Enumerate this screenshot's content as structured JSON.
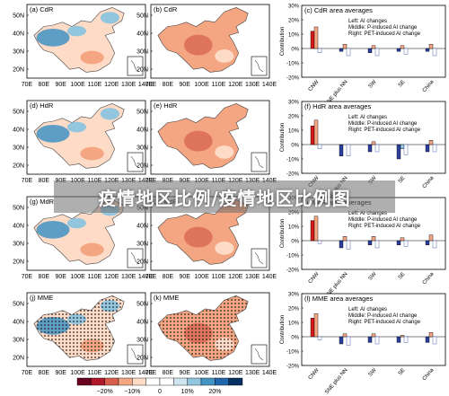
{
  "banner_text": "疫情地区比例/疫情地区比例图",
  "colors": {
    "positive": "#d7191c",
    "negative": "#2c3e9e",
    "neutral_bar": "#ffffff",
    "map_land_warm": "#f4a582",
    "map_land_light": "#fddbc7",
    "map_water": "#ffffff"
  },
  "map_axes": {
    "x_ticks": [
      "70E",
      "80E",
      "90E",
      "100E",
      "110E",
      "120E",
      "130E",
      "140E"
    ],
    "y_ticks": [
      "50N",
      "40N",
      "30N",
      "20N"
    ]
  },
  "colorbar": {
    "tick_labels": [
      "−20%",
      "−10%",
      "0",
      "10%",
      "20%"
    ],
    "colors": [
      "#67001f",
      "#b2182b",
      "#d6604d",
      "#f4a582",
      "#fddbc7",
      "#ffffff",
      "#ffffff",
      "#d1e5f0",
      "#92c5de",
      "#4393c3",
      "#2166ac",
      "#053061"
    ]
  },
  "chart_data": [
    {
      "type": "bar",
      "title": "(c) CdR area averages",
      "ylabel": "Contribution",
      "ylim": [
        -20,
        30
      ],
      "y_ticks": [
        "30%",
        "20%",
        "10%",
        "0%",
        "-10%",
        "-20%"
      ],
      "categories": [
        "CNW",
        "SNE plus NN",
        "SW",
        "SE",
        "China"
      ],
      "legend": [
        "Left: AI changes",
        "Middle: P-induced AI change",
        "Right: PET-induced AI change"
      ],
      "legend_placement": "top-right",
      "series": [
        {
          "name": "AI changes",
          "values": [
            12,
            -2,
            -3,
            -2,
            -2
          ]
        },
        {
          "name": "P-induced AI change",
          "values": [
            15,
            3,
            2,
            2,
            3
          ]
        },
        {
          "name": "PET-induced AI change",
          "values": [
            -3,
            -5,
            -5,
            -4,
            -5
          ]
        }
      ]
    },
    {
      "type": "bar",
      "title": "(f) HdR area averages",
      "ylabel": "Contribution",
      "ylim": [
        -20,
        30
      ],
      "y_ticks": [
        "30%",
        "20%",
        "10%",
        "0%",
        "-10%",
        "-20%"
      ],
      "categories": [
        "CNW",
        "SNE plus NN",
        "SW",
        "SE",
        "China"
      ],
      "legend": [
        "Left: AI changes",
        "Middle: P-induced AI change",
        "Right: PET-induced AI change"
      ],
      "legend_placement": "top-right",
      "series": [
        {
          "name": "AI changes",
          "values": [
            13,
            -8,
            -5,
            -10,
            -5
          ]
        },
        {
          "name": "P-induced AI change",
          "values": [
            17,
            0,
            2,
            -3,
            3
          ]
        },
        {
          "name": "PET-induced AI change",
          "values": [
            -3,
            -8,
            -5,
            -7,
            -5
          ]
        }
      ]
    },
    {
      "type": "bar",
      "title": "(i) MdR area averages",
      "ylabel": "Contribution",
      "ylim": [
        -20,
        30
      ],
      "y_ticks": [
        "30%",
        "20%",
        "10%",
        "0%",
        "-10%",
        "-20%"
      ],
      "categories": [
        "CNW",
        "SNE plus NN",
        "SW",
        "SE",
        "China"
      ],
      "legend": [
        "Left: AI changes",
        "Middle: P-induced AI change",
        "Right: PET-induced AI change"
      ],
      "legend_placement": "top-right",
      "series": [
        {
          "name": "AI changes",
          "values": [
            14,
            -5,
            -3,
            -3,
            -3
          ]
        },
        {
          "name": "P-induced AI change",
          "values": [
            17,
            3,
            3,
            2,
            4
          ]
        },
        {
          "name": "PET-induced AI change",
          "values": [
            -2,
            -6,
            -5,
            -4,
            -5
          ]
        }
      ]
    },
    {
      "type": "bar",
      "title": "(l) MME area averages",
      "ylabel": "Contribution",
      "ylim": [
        -20,
        30
      ],
      "y_ticks": [
        "30%",
        "20%",
        "10%",
        "0%",
        "-10%",
        "-20%"
      ],
      "categories": [
        "CNW",
        "SNE plus NN",
        "SW",
        "SE",
        "China"
      ],
      "legend": [
        "Left: AI changes",
        "Middle: P-induced AI change",
        "Right: PET-induced AI change"
      ],
      "legend_placement": "top-right",
      "series": [
        {
          "name": "AI changes",
          "values": [
            13,
            -5,
            -4,
            -4,
            -4
          ]
        },
        {
          "name": "P-induced AI change",
          "values": [
            16,
            2,
            2,
            1,
            3
          ]
        },
        {
          "name": "PET-induced AI change",
          "values": [
            -2,
            -6,
            -5,
            -4,
            -5
          ]
        }
      ]
    }
  ],
  "maps": [
    {
      "label": "(a) CdR",
      "style": "mixed"
    },
    {
      "label": "(b) CdR",
      "style": "warm"
    },
    {
      "label": "(d) HdR",
      "style": "mixed"
    },
    {
      "label": "(e) HdR",
      "style": "warm"
    },
    {
      "label": "(g) MdR",
      "style": "mixed"
    },
    {
      "label": "(h) MdR",
      "style": "warm"
    },
    {
      "label": "(j) MME",
      "style": "mixed-stippled"
    },
    {
      "label": "(k) MME",
      "style": "warm-stippled"
    }
  ]
}
